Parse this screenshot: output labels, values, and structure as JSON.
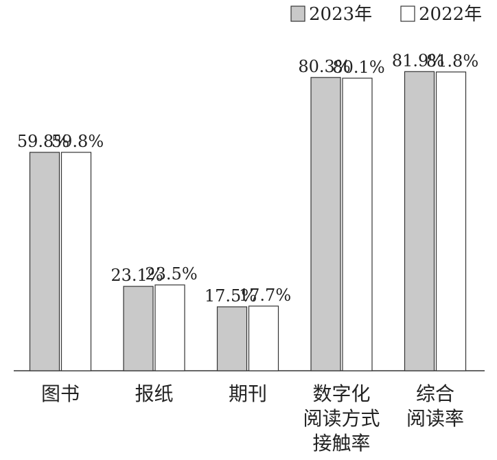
{
  "chart_data": {
    "type": "bar",
    "categories": [
      "图书",
      "报纸",
      "期刊",
      "数字化\n阅读方式\n接触率",
      "综合\n阅读率"
    ],
    "series": [
      {
        "name": "2023年",
        "color": "#c9c9c9",
        "values": [
          59.8,
          23.1,
          17.5,
          80.3,
          81.9
        ],
        "value_labels": [
          "59.8%",
          "23.1%",
          "17.5%",
          "80.3%",
          "81.9%"
        ]
      },
      {
        "name": "2022年",
        "color": "#ffffff",
        "values": [
          59.8,
          23.5,
          17.7,
          80.1,
          81.8
        ],
        "value_labels": [
          "59.8%",
          "23.5%",
          "17.7%",
          "80.1%",
          "81.8%"
        ]
      }
    ],
    "ylim": [
      0,
      100
    ]
  }
}
